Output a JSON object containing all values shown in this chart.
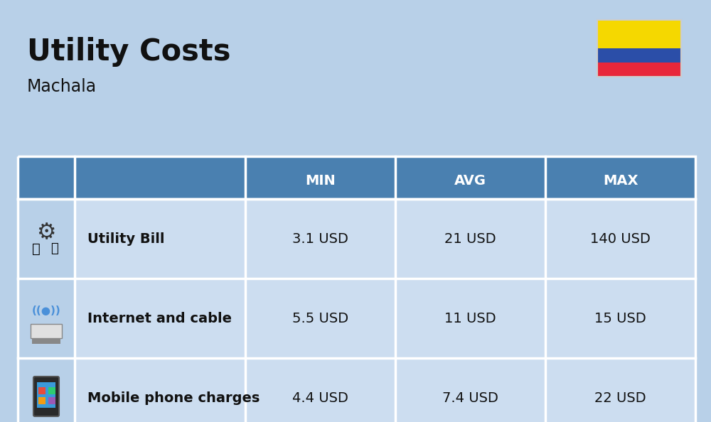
{
  "title": "Utility Costs",
  "subtitle": "Machala",
  "background_color": "#b8d0e8",
  "header_color": "#4a80b0",
  "header_text_color": "#ffffff",
  "row_color": "#ccddf0",
  "icon_col_color": "#b8d0e8",
  "table_border_color": "#ffffff",
  "text_color": "#111111",
  "header_labels": [
    "MIN",
    "AVG",
    "MAX"
  ],
  "rows": [
    {
      "icon_label": "utility",
      "name": "Utility Bill",
      "min": "3.1 USD",
      "avg": "21 USD",
      "max": "140 USD"
    },
    {
      "icon_label": "internet",
      "name": "Internet and cable",
      "min": "5.5 USD",
      "avg": "11 USD",
      "max": "15 USD"
    },
    {
      "icon_label": "mobile",
      "name": "Mobile phone charges",
      "min": "4.4 USD",
      "avg": "7.4 USD",
      "max": "22 USD"
    }
  ],
  "title_fontsize": 30,
  "subtitle_fontsize": 17,
  "header_fontsize": 14,
  "cell_fontsize": 14,
  "name_fontsize": 14,
  "flag_yellow": "#F5D800",
  "flag_blue": "#2B4EA8",
  "flag_red": "#E8273A"
}
